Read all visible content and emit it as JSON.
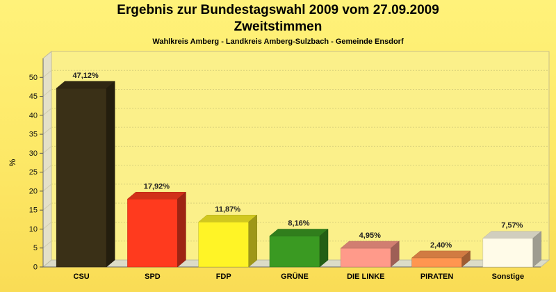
{
  "title": "Ergebnis zur Bundestagswahl 2009 vom 27.09.2009",
  "subtitle_line2": "Zweitstimmen",
  "subtitle": "Wahlkreis Amberg - Landkreis Amberg-Sulzbach - Gemeinde Ensdorf",
  "chart_data": {
    "type": "bar",
    "title": "Ergebnis zur Bundestagswahl 2009 vom 27.09.2009",
    "ylabel": "%",
    "xlabel": "",
    "ylim": [
      0,
      55
    ],
    "yticks": [
      0,
      5,
      10,
      15,
      20,
      25,
      30,
      35,
      40,
      45,
      50
    ],
    "grid": true,
    "categories": [
      "CSU",
      "SPD",
      "FDP",
      "GRÜNE",
      "DIE LINKE",
      "PIRATEN",
      "Sonstige"
    ],
    "values": [
      47.12,
      17.92,
      11.87,
      8.16,
      4.95,
      2.4,
      7.57
    ],
    "value_labels": [
      "47,12%",
      "17,92%",
      "11,87%",
      "8,16%",
      "4,95%",
      "2,40%",
      "7,57%"
    ],
    "colors": [
      "#3a3017",
      "#ff3a1e",
      "#fff426",
      "#3a9a22",
      "#ff9a8a",
      "#ff9650",
      "#fffbe8"
    ]
  }
}
